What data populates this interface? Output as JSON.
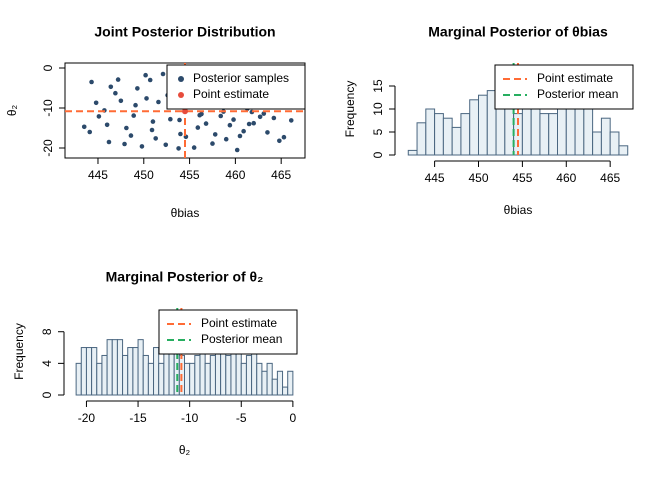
{
  "chart_data": [
    {
      "type": "scatter",
      "title": "Joint Posterior Distribution",
      "x_label": "θbias",
      "y_label": "θ₂",
      "xlim": [
        441.4,
        467.6
      ],
      "ylim": [
        -22.5,
        1.25
      ],
      "xticks": [
        445,
        450,
        455,
        460,
        465
      ],
      "yticks": [
        -20,
        -10,
        0
      ],
      "legend": "topright",
      "box": true,
      "series": [
        {
          "name": "Posterior samples",
          "color": "#2c4a6b",
          "x": [
            444.3,
            445.1,
            446.2,
            447.5,
            448.1,
            449.3,
            450.2,
            451.0,
            452.4,
            453.1,
            454.0,
            455.2,
            456.3,
            457.5,
            458.1,
            459.4,
            460.2,
            461.3,
            462.0,
            463.5,
            464.2,
            465.3,
            466.1,
            444.8,
            446.9,
            448.6,
            450.7,
            452.9,
            453.8,
            455.9,
            457.0,
            459.0,
            461.8,
            443.5,
            445.7,
            447.2,
            449.8,
            451.6,
            453.4,
            454.6,
            456.8,
            458.7,
            460.9,
            462.7,
            464.8,
            444.1,
            446.4,
            448.9,
            450.3,
            452.1,
            453.9,
            455.5,
            457.8,
            459.8,
            461.5,
            463.1,
            465.8,
            447.9,
            450.9,
            452.6,
            454.3,
            456.1,
            458.4,
            460.5,
            446.0,
            449.1,
            451.3,
            453.6
          ],
          "values": [
            -3.5,
            -12.1,
            -18.5,
            -8.2,
            -15.0,
            -5.1,
            -1.8,
            -13.4,
            -19.2,
            -9.8,
            -16.5,
            -4.2,
            -11.5,
            -18.9,
            -7.0,
            -14.3,
            -20.5,
            -10.2,
            -13.8,
            -16.1,
            -12.5,
            -17.3,
            -13.1,
            -8.7,
            -6.3,
            -16.9,
            -3.0,
            -12.8,
            -20.1,
            -14.9,
            -9.1,
            -17.8,
            -11.0,
            -14.7,
            -10.6,
            -2.9,
            -19.6,
            -8.5,
            -5.6,
            -17.2,
            -13.9,
            -10.9,
            -15.8,
            -12.2,
            -18.2,
            -16.0,
            -4.7,
            -11.9,
            -7.6,
            -1.5,
            -13.0,
            -19.9,
            -16.6,
            -12.9,
            -14.0,
            -11.4,
            -9.5,
            -19.0,
            -15.5,
            -6.8,
            -2.4,
            -11.8,
            -12.0,
            -17.0,
            -14.2,
            -9.3,
            -17.6,
            -4.0
          ]
        },
        {
          "name": "Point estimate",
          "color": "#e74c3c",
          "line_color": "#ff6b35",
          "x": [
            454.5
          ],
          "values": [
            -10.8
          ]
        }
      ]
    },
    {
      "type": "histogram",
      "title": "Marginal Posterior of θbias",
      "x_label": "θbias",
      "y_label": "Frequency",
      "xlim": [
        441.4,
        467.6
      ],
      "ylim": [
        0,
        20
      ],
      "xticks": [
        445,
        450,
        455,
        460,
        465
      ],
      "yticks": [
        0,
        5,
        10,
        15
      ],
      "legend": "topright",
      "color": "#e8f0f5",
      "edge_color": "#4a6680",
      "bins": [
        442,
        443,
        444,
        445,
        446,
        447,
        448,
        449,
        450,
        451,
        452,
        453,
        454,
        455,
        456,
        457,
        458,
        459,
        460,
        461,
        462,
        463,
        464,
        465,
        466,
        467
      ],
      "values": [
        1,
        7,
        10,
        9,
        8,
        6,
        9,
        12,
        13,
        14,
        11,
        14,
        9,
        12,
        10,
        9,
        9,
        12,
        14,
        11,
        12,
        5,
        8,
        5,
        2
      ],
      "vlines": [
        {
          "name": "Point estimate",
          "value": 454.5,
          "color": "#ff6b35"
        },
        {
          "name": "Posterior mean",
          "value": 454.0,
          "color": "#27ae60"
        }
      ]
    },
    {
      "type": "histogram",
      "title": "Marginal Posterior of θ₂",
      "x_label": "θ₂",
      "y_label": "Frequency",
      "xlim": [
        -21.4,
        0.4
      ],
      "ylim": [
        0,
        11
      ],
      "xticks": [
        -20,
        -15,
        -10,
        -5,
        0
      ],
      "yticks": [
        0,
        4,
        8
      ],
      "legend": "topright",
      "color": "#e8f0f5",
      "edge_color": "#4a6680",
      "bins": [
        -21,
        -20.5,
        -20,
        -19.5,
        -19,
        -18.5,
        -18,
        -17.5,
        -17,
        -16.5,
        -16,
        -15.5,
        -15,
        -14.5,
        -14,
        -13.5,
        -13,
        -12.5,
        -12,
        -11.5,
        -11,
        -10.5,
        -10,
        -9.5,
        -9,
        -8.5,
        -8,
        -7.5,
        -7,
        -6.5,
        -6,
        -5.5,
        -5,
        -4.5,
        -4,
        -3.5,
        -3,
        -2.5,
        -2,
        -1.5,
        -1,
        -0.5,
        0
      ],
      "values": [
        4,
        6,
        6,
        6,
        4,
        5,
        7,
        7,
        7,
        5,
        6,
        6,
        7,
        5,
        4,
        6,
        4,
        6,
        7,
        6,
        5,
        4,
        4,
        5,
        7,
        4,
        5,
        6,
        6,
        5,
        6,
        6,
        4,
        5,
        6,
        4,
        3,
        4,
        2,
        3,
        1,
        3
      ],
      "vlines": [
        {
          "name": "Point estimate",
          "value": -10.8,
          "color": "#ff6b35"
        },
        {
          "name": "Posterior mean",
          "value": -11.2,
          "color": "#27ae60"
        }
      ]
    }
  ]
}
